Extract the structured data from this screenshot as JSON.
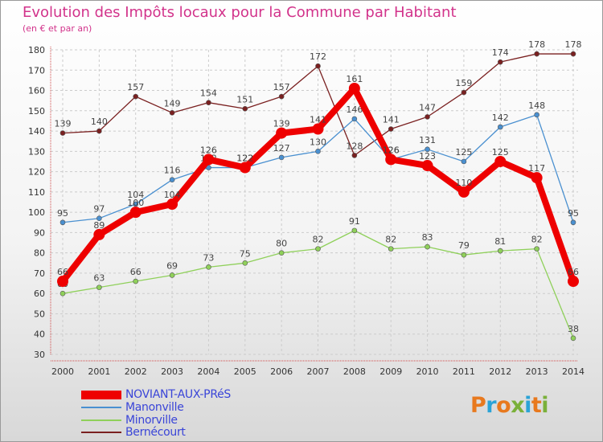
{
  "title": "Evolution des Impôts locaux pour la Commune par Habitant",
  "subtitle": "(en € et par an)",
  "logo": {
    "text": "Proxiti",
    "colors": [
      "#e8791e",
      "#2ba3d6",
      "#e8791e",
      "#7ab03a",
      "#2ba3d6",
      "#e8791e",
      "#7ab03a"
    ]
  },
  "chart_data": {
    "type": "line",
    "x": [
      2000,
      2001,
      2002,
      2003,
      2004,
      2005,
      2006,
      2007,
      2008,
      2009,
      2010,
      2011,
      2012,
      2013,
      2014
    ],
    "ylim": [
      30,
      180
    ],
    "yticks": [
      30,
      40,
      50,
      60,
      70,
      80,
      90,
      100,
      110,
      120,
      130,
      140,
      150,
      160,
      170,
      180
    ],
    "grid": true,
    "legend_position": "bottom-left",
    "series": [
      {
        "name": "Bernécourt",
        "color": "#7a2020",
        "values": [
          139,
          140,
          157,
          149,
          154,
          151,
          157,
          172,
          128,
          141,
          147,
          159,
          174,
          178,
          178
        ]
      },
      {
        "name": "Manonville",
        "color": "#4a90d0",
        "values": [
          95,
          97,
          104,
          116,
          122,
          122,
          127,
          130,
          146,
          126,
          131,
          125,
          142,
          148,
          95
        ]
      },
      {
        "name": "Minorville",
        "color": "#8fd05a",
        "values": [
          60,
          63,
          66,
          69,
          73,
          75,
          80,
          82,
          91,
          82,
          83,
          79,
          81,
          82,
          38
        ]
      },
      {
        "name": "NOVIANT-AUX-PRéS",
        "color": "#ee0000",
        "values": [
          66,
          89,
          100,
          104,
          126,
          122,
          139,
          141,
          161,
          126,
          123,
          110,
          125,
          117,
          66
        ]
      }
    ]
  }
}
